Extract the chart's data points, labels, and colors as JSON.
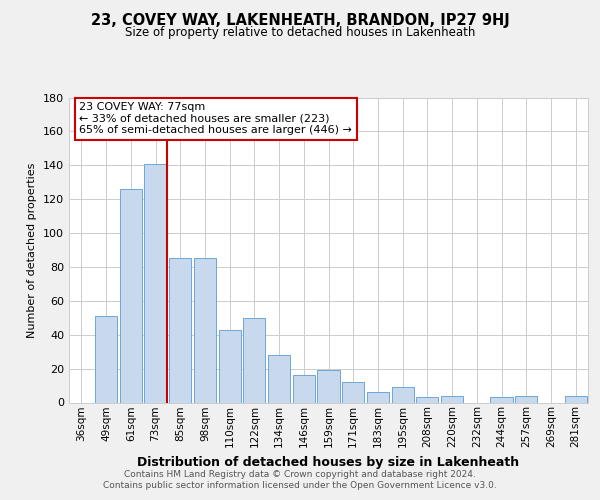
{
  "title": "23, COVEY WAY, LAKENHEATH, BRANDON, IP27 9HJ",
  "subtitle": "Size of property relative to detached houses in Lakenheath",
  "xlabel": "Distribution of detached houses by size in Lakenheath",
  "ylabel": "Number of detached properties",
  "footer_line1": "Contains HM Land Registry data © Crown copyright and database right 2024.",
  "footer_line2": "Contains public sector information licensed under the Open Government Licence v3.0.",
  "bar_labels": [
    "36sqm",
    "49sqm",
    "61sqm",
    "73sqm",
    "85sqm",
    "98sqm",
    "110sqm",
    "122sqm",
    "134sqm",
    "146sqm",
    "159sqm",
    "171sqm",
    "183sqm",
    "195sqm",
    "208sqm",
    "220sqm",
    "232sqm",
    "244sqm",
    "257sqm",
    "269sqm",
    "281sqm"
  ],
  "bar_values": [
    0,
    51,
    126,
    141,
    85,
    85,
    43,
    50,
    28,
    16,
    19,
    12,
    6,
    9,
    3,
    4,
    0,
    3,
    4,
    0,
    4
  ],
  "bar_color": "#c8d9ed",
  "bar_edgecolor": "#5b9bd5",
  "ref_line_color": "#cc0000",
  "annotation_title": "23 COVEY WAY: 77sqm",
  "annotation_line1": "← 33% of detached houses are smaller (223)",
  "annotation_line2": "65% of semi-detached houses are larger (446) →",
  "annotation_box_edgecolor": "#cc0000",
  "ylim": [
    0,
    180
  ],
  "yticks": [
    0,
    20,
    40,
    60,
    80,
    100,
    120,
    140,
    160,
    180
  ],
  "background_color": "#f0f0f0",
  "plot_background": "#ffffff",
  "grid_color": "#cccccc"
}
